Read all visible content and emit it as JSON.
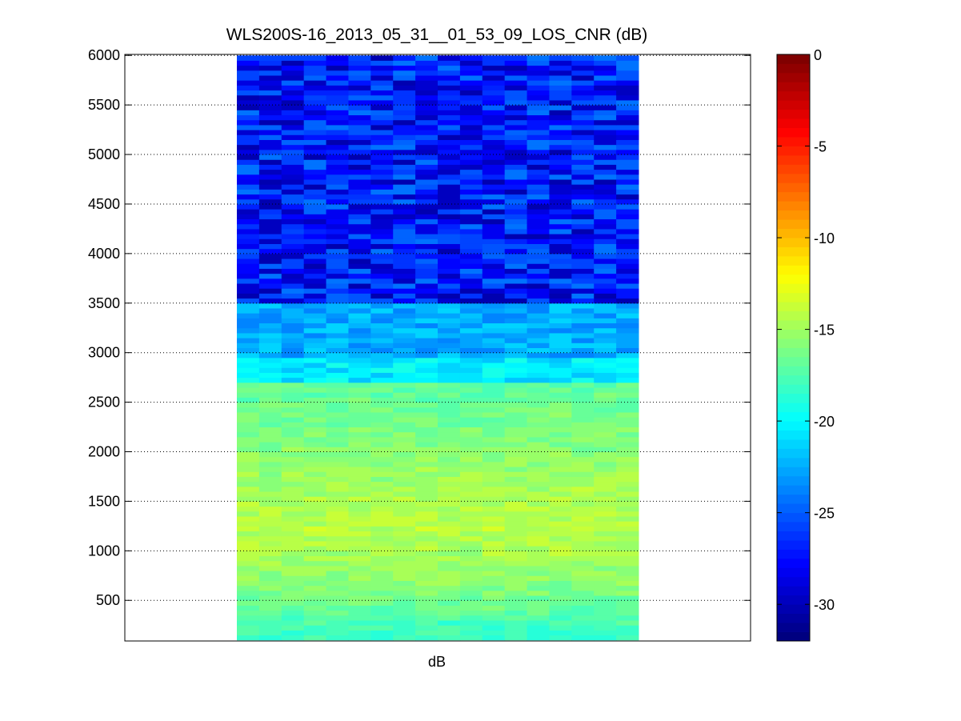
{
  "chart_data": {
    "type": "heatmap",
    "title": "WLS200S-16_2013_05_31__01_53_09_LOS_CNR (dB)",
    "xlabel": "dB",
    "ylabel": "",
    "ylim": [
      90,
      6010
    ],
    "yticks": [
      500,
      1000,
      1500,
      2000,
      2500,
      3000,
      3500,
      4000,
      4500,
      5000,
      5500,
      6000
    ],
    "grid": "y-dotted",
    "colormap": "jet",
    "colorbar": {
      "range": [
        -32,
        0
      ],
      "ticks": [
        0,
        -5,
        -10,
        -15,
        -20,
        -25,
        -30
      ],
      "levels": 64
    },
    "columns": 18,
    "rows": [
      {
        "ymin": 100,
        "ymax": 2700,
        "cnr_profile": [
          [
            100,
            -18.5
          ],
          [
            300,
            -17.5
          ],
          [
            600,
            -16.0
          ],
          [
            900,
            -15.0
          ],
          [
            1200,
            -14.2
          ],
          [
            1500,
            -14.6
          ],
          [
            1800,
            -15.3
          ],
          [
            2100,
            -15.9
          ],
          [
            2400,
            -16.4
          ],
          [
            2700,
            -17.2
          ]
        ]
      },
      {
        "ymin": 2700,
        "ymax": 2950,
        "cnr_mean": -20.5
      },
      {
        "ymin": 2950,
        "ymax": 3500,
        "cnr_mean": -22.5
      },
      {
        "ymin": 3500,
        "ymax": 6000,
        "cnr_mean": -27.2
      }
    ],
    "colors": {
      "low": "#00008f",
      "mid": "#7fff7f",
      "high": "#800000",
      "background": "#ffffff",
      "axes": "#000000"
    }
  }
}
